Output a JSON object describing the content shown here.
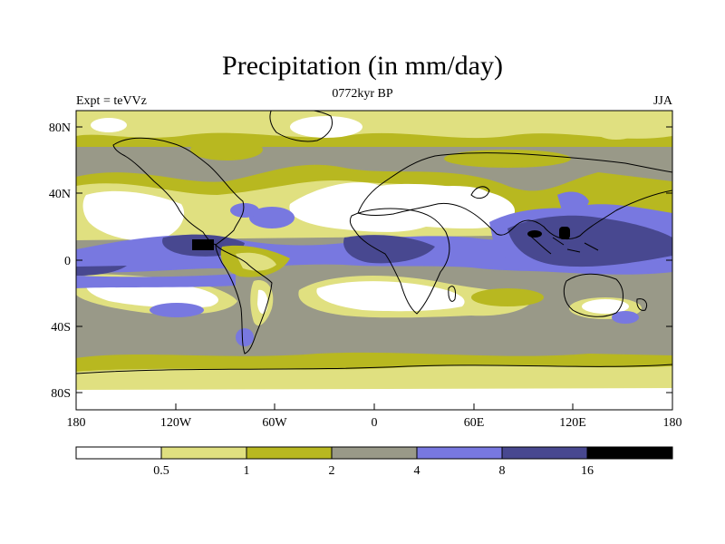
{
  "title": "Precipitation (in mm/day)",
  "subtitle": "0772kyr BP",
  "left_note": "Expt = teVVz",
  "right_note": "JJA",
  "lat_labels": [
    "80N",
    "40N",
    "0",
    "40S",
    "80S"
  ],
  "lon_labels": [
    "180",
    "120W",
    "60W",
    "0",
    "60E",
    "120E",
    "180"
  ],
  "colorbar": {
    "labels": [
      "0.5",
      "1",
      "2",
      "4",
      "8",
      "16"
    ],
    "colors": [
      "#ffffff",
      "#e0e080",
      "#b8b820",
      "#999988",
      "#7878e0",
      "#484890",
      "#000000"
    ]
  }
}
